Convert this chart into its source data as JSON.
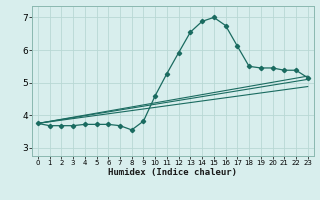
{
  "xlabel": "Humidex (Indice chaleur)",
  "bg_color": "#d8eeed",
  "grid_color": "#b8d8d4",
  "line_color": "#1a6b60",
  "xlim": [
    -0.5,
    23.5
  ],
  "ylim": [
    2.75,
    7.35
  ],
  "yticks": [
    3,
    4,
    5,
    6,
    7
  ],
  "xticks": [
    0,
    1,
    2,
    3,
    4,
    5,
    6,
    7,
    8,
    9,
    10,
    11,
    12,
    13,
    14,
    15,
    16,
    17,
    18,
    19,
    20,
    21,
    22,
    23
  ],
  "line1_x": [
    0,
    1,
    2,
    3,
    4,
    5,
    6,
    7,
    8,
    9,
    10,
    11,
    12,
    13,
    14,
    15,
    16,
    17,
    18,
    19,
    20,
    21,
    22,
    23
  ],
  "line1_y": [
    3.75,
    3.68,
    3.68,
    3.68,
    3.72,
    3.72,
    3.72,
    3.68,
    3.55,
    3.82,
    4.6,
    5.28,
    5.92,
    6.55,
    6.88,
    7.0,
    6.75,
    6.12,
    5.5,
    5.45,
    5.45,
    5.38,
    5.38,
    5.15
  ],
  "line2_x": [
    0,
    23
  ],
  "line2_y": [
    3.75,
    5.2
  ],
  "line3_x": [
    0,
    23
  ],
  "line3_y": [
    3.75,
    5.1
  ],
  "line4_x": [
    0,
    23
  ],
  "line4_y": [
    3.75,
    4.88
  ]
}
